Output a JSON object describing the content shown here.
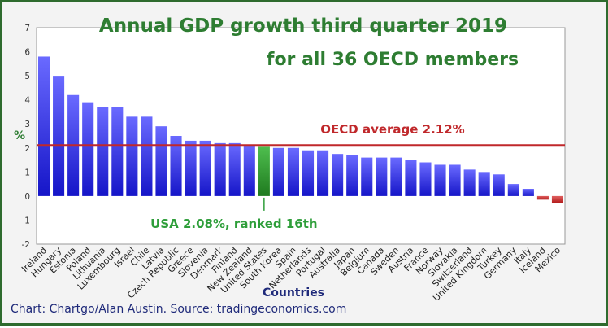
{
  "chart_data": {
    "type": "bar",
    "title": "Annual GDP growth third quarter 2019",
    "subtitle": "for all 36 OECD members",
    "ylabel": "%",
    "xlabel": "Countries",
    "ylim": [
      -2,
      7
    ],
    "yticks": [
      "-2",
      "-1",
      "0",
      "1",
      "2",
      "3",
      "4",
      "5",
      "6",
      "7"
    ],
    "grid": false,
    "categories": [
      "Ireland",
      "Hungary",
      "Estonia",
      "Poland",
      "Lithuania",
      "Luxembourg",
      "Israel",
      "Chile",
      "Latvia",
      "Czech Republic",
      "Greece",
      "Slovenia",
      "Denmark",
      "Finland",
      "New Zealand",
      "United States",
      "South Korea",
      "Spain",
      "Netherlands",
      "Portugal",
      "Australia",
      "Japan",
      "Belgium",
      "Canada",
      "Sweden",
      "Austria",
      "France",
      "Norway",
      "Slovakia",
      "Switzerland",
      "United Kingdom",
      "Turkey",
      "Germany",
      "Italy",
      "Iceland",
      "Mexico"
    ],
    "values": [
      5.8,
      5.0,
      4.2,
      3.9,
      3.7,
      3.7,
      3.3,
      3.3,
      2.9,
      2.5,
      2.3,
      2.3,
      2.2,
      2.2,
      2.1,
      2.08,
      2.0,
      2.0,
      1.9,
      1.9,
      1.75,
      1.7,
      1.6,
      1.6,
      1.6,
      1.5,
      1.4,
      1.3,
      1.3,
      1.1,
      1.0,
      0.9,
      0.5,
      0.3,
      -0.15,
      -0.3
    ],
    "average": 2.12,
    "average_label": "OECD average 2.12%",
    "highlight_index": 15,
    "highlight_label": "USA 2.08%, ranked 16th",
    "colors": {
      "bar_positive_top": "#6a6aff",
      "bar_positive_bottom": "#1515c8",
      "bar_highlight_top": "#4fbf4f",
      "bar_highlight_bottom": "#1f7a1f",
      "bar_negative_top": "#e06060",
      "bar_negative_bottom": "#b01818",
      "average_line": "#c0282b",
      "frame": "#2e6b2e",
      "title": "#2e7d32"
    }
  },
  "source_note": "Chart: Chartgo/Alan Austin. Source: tradingeconomics.com"
}
